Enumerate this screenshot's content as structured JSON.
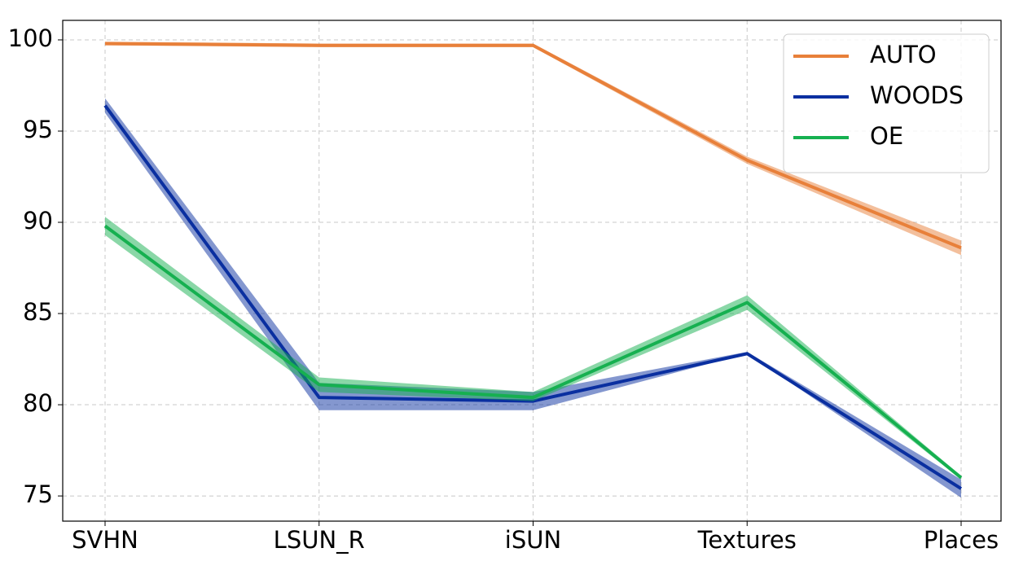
{
  "chart_data": {
    "type": "line",
    "categories": [
      "SVHN",
      "LSUN_R",
      "iSUN",
      "Textures",
      "Places"
    ],
    "series": [
      {
        "name": "AUTO",
        "color": "#e8803a",
        "values": [
          99.8,
          99.7,
          99.7,
          93.4,
          88.6
        ],
        "lower": [
          99.7,
          99.6,
          99.6,
          93.2,
          88.2
        ],
        "upper": [
          99.9,
          99.8,
          99.8,
          93.6,
          89.0
        ]
      },
      {
        "name": "WOODS",
        "color": "#0a2fa0",
        "values": [
          96.4,
          80.4,
          80.2,
          82.8,
          75.4
        ],
        "lower": [
          96.0,
          79.7,
          79.7,
          82.8,
          74.9
        ],
        "upper": [
          96.8,
          81.2,
          80.7,
          82.9,
          75.9
        ]
      },
      {
        "name": "OE",
        "color": "#16b050",
        "values": [
          89.8,
          81.1,
          80.4,
          85.6,
          76.0
        ],
        "lower": [
          89.3,
          80.7,
          80.2,
          85.2,
          75.9
        ],
        "upper": [
          90.3,
          81.5,
          80.7,
          86.0,
          76.1
        ]
      }
    ],
    "ylim": [
      73.62,
      101.07
    ],
    "yticks": [
      75,
      80,
      85,
      90,
      95,
      100
    ],
    "grid": true,
    "legend": "upper right"
  }
}
